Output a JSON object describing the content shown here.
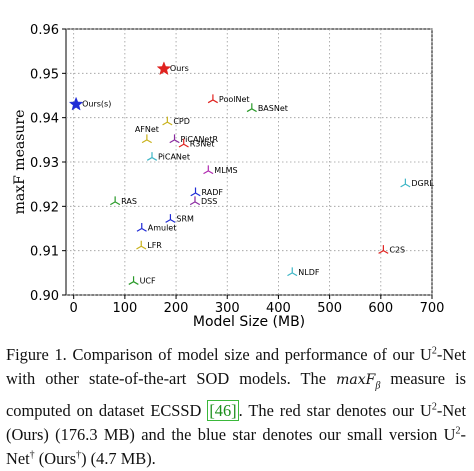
{
  "chart_data": {
    "type": "scatter",
    "xlabel": "Model Size (MB)",
    "ylabel": "maxF measure",
    "xlim": [
      -15,
      700
    ],
    "ylim": [
      0.9,
      0.96
    ],
    "xticks": [
      "0",
      "100",
      "200",
      "300",
      "400",
      "500",
      "600",
      "700"
    ],
    "yticks": [
      "0.90",
      "0.91",
      "0.92",
      "0.93",
      "0.94",
      "0.95",
      "0.96"
    ],
    "grid": true,
    "points": [
      {
        "label": "Ours",
        "x": 176.3,
        "y": 0.951,
        "color": "#e0221f",
        "marker": "star",
        "label_side": "right"
      },
      {
        "label": "Ours(s)",
        "x": 4.7,
        "y": 0.943,
        "color": "#1f2bd6",
        "marker": "star",
        "label_side": "right"
      },
      {
        "label": "PoolNet",
        "x": 272,
        "y": 0.944,
        "color": "#e0221f",
        "marker": "tri",
        "label_side": "right"
      },
      {
        "label": "BASNet",
        "x": 348,
        "y": 0.942,
        "color": "#2a9a2a",
        "marker": "tri",
        "label_side": "right"
      },
      {
        "label": "CPD",
        "x": 183,
        "y": 0.939,
        "color": "#c9b21c",
        "marker": "tri",
        "label_side": "right"
      },
      {
        "label": "AFNet",
        "x": 143,
        "y": 0.935,
        "color": "#c9b21c",
        "marker": "tri",
        "label_side": "above"
      },
      {
        "label": "PiCANetR",
        "x": 197,
        "y": 0.935,
        "color": "#8a2ba0",
        "marker": "tri",
        "label_side": "right"
      },
      {
        "label": "R3Net",
        "x": 215,
        "y": 0.934,
        "color": "#e0221f",
        "marker": "tri",
        "label_side": "right"
      },
      {
        "label": "PiCANet",
        "x": 153,
        "y": 0.931,
        "color": "#3fb6c6",
        "marker": "tri",
        "label_side": "right"
      },
      {
        "label": "MLMS",
        "x": 263,
        "y": 0.928,
        "color": "#b02bb0",
        "marker": "tri",
        "label_side": "right"
      },
      {
        "label": "RADF",
        "x": 238,
        "y": 0.923,
        "color": "#1f2bd6",
        "marker": "tri",
        "label_side": "right"
      },
      {
        "label": "DSS",
        "x": 237,
        "y": 0.921,
        "color": "#8a2ba0",
        "marker": "tri",
        "label_side": "right"
      },
      {
        "label": "RAS",
        "x": 81,
        "y": 0.921,
        "color": "#2a9a2a",
        "marker": "tri",
        "label_side": "right"
      },
      {
        "label": "SRM",
        "x": 189,
        "y": 0.917,
        "color": "#1f2bd6",
        "marker": "tri",
        "label_side": "right"
      },
      {
        "label": "Amulet",
        "x": 133,
        "y": 0.915,
        "color": "#1f2bd6",
        "marker": "tri",
        "label_side": "right"
      },
      {
        "label": "LFR",
        "x": 132,
        "y": 0.911,
        "color": "#c9b21c",
        "marker": "tri",
        "label_side": "right"
      },
      {
        "label": "UCF",
        "x": 117,
        "y": 0.903,
        "color": "#2a9a2a",
        "marker": "tri",
        "label_side": "right"
      },
      {
        "label": "NLDF",
        "x": 427,
        "y": 0.905,
        "color": "#3fb6c6",
        "marker": "tri",
        "label_side": "right"
      },
      {
        "label": "C2S",
        "x": 605,
        "y": 0.91,
        "color": "#e0221f",
        "marker": "tri",
        "label_side": "right"
      },
      {
        "label": "DGRL",
        "x": 648,
        "y": 0.925,
        "color": "#3fb6c6",
        "marker": "tri",
        "label_side": "right"
      }
    ]
  },
  "caption": {
    "fig_label": "Figure 1.",
    "t1": " Comparison of model size and performance of our U",
    "sup1": "2",
    "t2": "-Net with other state-of-the-art SOD models. The ",
    "math": "maxF",
    "math_sub": "β",
    "t3": " measure is computed on dataset ECSSD ",
    "ref": "[46]",
    "t4": ". The red star denotes our U",
    "sup2": "2",
    "t5": "-Net (Ours) (176.3 MB) and the blue star denotes our small version U",
    "sup3": "2",
    "t6": "-Net",
    "sup4": "†",
    "t7": " (Ours",
    "sup5": "†",
    "t8": ") (4.7 MB)."
  }
}
